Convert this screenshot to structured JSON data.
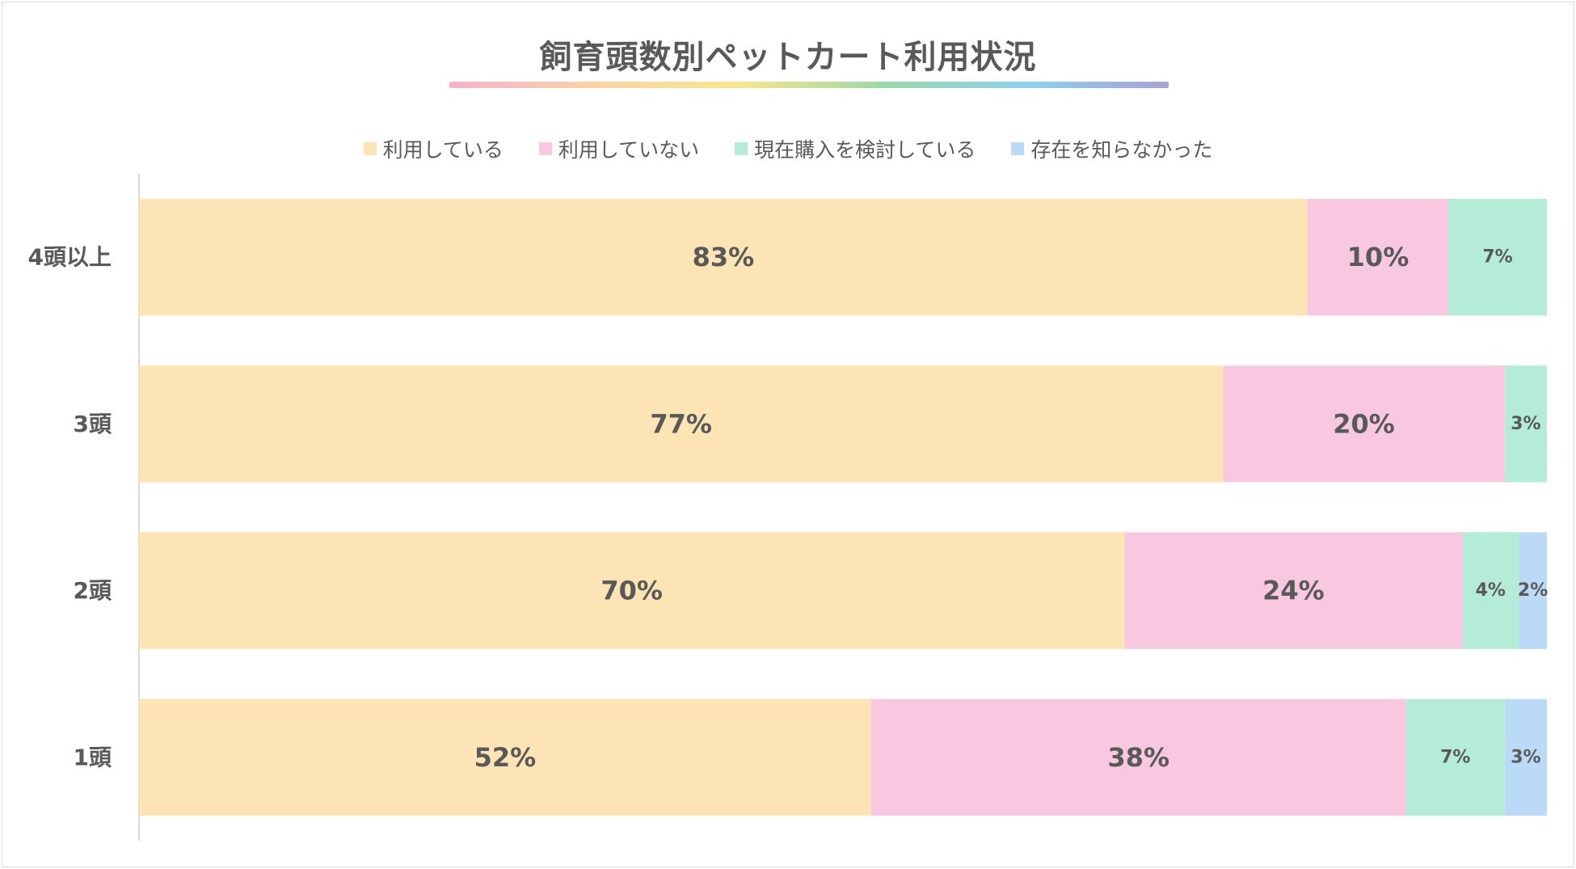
{
  "chart_data": {
    "type": "bar",
    "orientation": "horizontal",
    "stacked": "percent",
    "title": "飼育頭数別ペットカート利用状況",
    "categories": [
      "4頭以上",
      "3頭",
      "2頭",
      "1頭"
    ],
    "series": [
      {
        "name": "利用している",
        "color": "#fde4b5",
        "values": [
          83,
          77,
          70,
          52
        ],
        "labels": [
          "83%",
          "77%",
          "70%",
          "52%"
        ]
      },
      {
        "name": "利用していない",
        "color": "#f8c7e0",
        "values": [
          10,
          20,
          24,
          38
        ],
        "labels": [
          "10%",
          "20%",
          "24%",
          "38%"
        ]
      },
      {
        "name": "現在購入を検討している",
        "color": "#b4ecd8",
        "values": [
          7,
          3,
          4,
          7
        ],
        "labels": [
          "7%",
          "3%",
          "4%",
          "7%"
        ]
      },
      {
        "name": "存在を知らなかった",
        "color": "#badaf8",
        "values": [
          0,
          0,
          2,
          3
        ],
        "labels": [
          "",
          "",
          "2%",
          "3%"
        ]
      }
    ],
    "xlim": [
      0,
      100
    ],
    "legend_position": "top",
    "grid": false
  }
}
